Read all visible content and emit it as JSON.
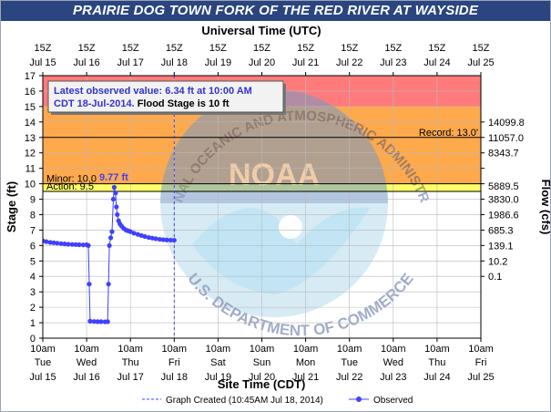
{
  "title": "PRAIRIE DOG TOWN FORK OF THE RED RIVER AT WAYSIDE",
  "colors": {
    "title_bg": "#2a4580",
    "major": "#ff7b7b",
    "moderate": "#ffa94d",
    "minor": "#ffc970",
    "action": "#ffff66",
    "observed": "#4040ff",
    "info_text": "#3333cc"
  },
  "info_box": {
    "line1": "Latest observed value: 6.34 ft at 10:00 AM",
    "line2_date": "CDT 18-Jul-2014.",
    "line2_flood": " Flood Stage is 10 ft"
  },
  "chart_data": {
    "type": "line",
    "top_axis_title": "Universal Time (UTC)",
    "top_ticks": [
      {
        "l1": "15Z",
        "l2": "Jul 15"
      },
      {
        "l1": "15Z",
        "l2": "Jul 16"
      },
      {
        "l1": "15Z",
        "l2": "Jul 17"
      },
      {
        "l1": "15Z",
        "l2": "Jul 18"
      },
      {
        "l1": "15Z",
        "l2": "Jul 19"
      },
      {
        "l1": "15Z",
        "l2": "Jul 20"
      },
      {
        "l1": "15Z",
        "l2": "Jul 21"
      },
      {
        "l1": "15Z",
        "l2": "Jul 22"
      },
      {
        "l1": "15Z",
        "l2": "Jul 23"
      },
      {
        "l1": "15Z",
        "l2": "Jul 24"
      },
      {
        "l1": "15Z",
        "l2": "Jul 25"
      }
    ],
    "xlabel": "Site Time (CDT)",
    "x_ticks": [
      {
        "time": "10am",
        "day": "Tue",
        "date": "Jul 15"
      },
      {
        "time": "10am",
        "day": "Wed",
        "date": "Jul 16"
      },
      {
        "time": "10am",
        "day": "Thu",
        "date": "Jul 17"
      },
      {
        "time": "10am",
        "day": "Fri",
        "date": "Jul 18"
      },
      {
        "time": "10am",
        "day": "Sat",
        "date": "Jul 19"
      },
      {
        "time": "10am",
        "day": "Sun",
        "date": "Jul 20"
      },
      {
        "time": "10am",
        "day": "Mon",
        "date": "Jul 21"
      },
      {
        "time": "10am",
        "day": "Tue",
        "date": "Jul 22"
      },
      {
        "time": "10am",
        "day": "Wed",
        "date": "Jul 23"
      },
      {
        "time": "10am",
        "day": "Thu",
        "date": "Jul 24"
      },
      {
        "time": "10am",
        "day": "Fri",
        "date": "Jul 25"
      }
    ],
    "xlim_days": [
      0,
      10
    ],
    "ylabel": "Stage (ft)",
    "ylim": [
      0,
      17
    ],
    "y_ticks": [
      0,
      1,
      2,
      3,
      4,
      5,
      6,
      7,
      8,
      9,
      10,
      11,
      12,
      13,
      14,
      15,
      16,
      17
    ],
    "right_ylabel": "Flow (cfs)",
    "flow_ticks": [
      {
        "stage": 14,
        "label": "14099.8"
      },
      {
        "stage": 13,
        "label": "11057.0"
      },
      {
        "stage": 12,
        "label": "8343.7"
      },
      {
        "stage": 11,
        "label": ""
      },
      {
        "stage": 10,
        "label": ""
      },
      {
        "stage": 9,
        "label": "3830.0"
      },
      {
        "stage": 8,
        "label": "1986.6"
      },
      {
        "stage": 7,
        "label": "685.3"
      },
      {
        "stage": 6,
        "label": "139.1"
      },
      {
        "stage": 5,
        "label": "10.2"
      },
      {
        "stage": 4,
        "label": "0.1"
      }
    ],
    "flood_categories": [
      {
        "name": "major",
        "from": 15,
        "to": 17
      },
      {
        "name": "moderate",
        "from": 10,
        "to": 15
      },
      {
        "name": "action",
        "from": 9.5,
        "to": 10
      }
    ],
    "thresholds": [
      {
        "stage": 13,
        "label": "Record: 13.0'"
      },
      {
        "stage": 10,
        "label": "Minor: 10.0"
      },
      {
        "stage": 9.5,
        "label": "Action: 9.5"
      }
    ],
    "flow_at_thresholds": [
      {
        "stage": 9.85,
        "label": "5889.5"
      }
    ],
    "crest_label": "9.77 ft",
    "graph_created_x_days": 3,
    "series": [
      {
        "name": "Observed",
        "points": [
          [
            0.0,
            6.3
          ],
          [
            0.08,
            6.25
          ],
          [
            0.17,
            6.2
          ],
          [
            0.25,
            6.18
          ],
          [
            0.33,
            6.15
          ],
          [
            0.42,
            6.12
          ],
          [
            0.5,
            6.1
          ],
          [
            0.58,
            6.08
          ],
          [
            0.67,
            6.07
          ],
          [
            0.75,
            6.06
          ],
          [
            0.83,
            6.05
          ],
          [
            0.92,
            6.04
          ],
          [
            1.0,
            6.05
          ],
          [
            1.04,
            6.0
          ],
          [
            1.06,
            3.5
          ],
          [
            1.08,
            1.1
          ],
          [
            1.17,
            1.08
          ],
          [
            1.25,
            1.07
          ],
          [
            1.33,
            1.07
          ],
          [
            1.42,
            1.06
          ],
          [
            1.48,
            1.07
          ],
          [
            1.5,
            3.5
          ],
          [
            1.52,
            6.0
          ],
          [
            1.55,
            6.5
          ],
          [
            1.58,
            6.9
          ],
          [
            1.61,
            9.0
          ],
          [
            1.63,
            9.77
          ],
          [
            1.66,
            9.4
          ],
          [
            1.68,
            8.5
          ],
          [
            1.7,
            8.0
          ],
          [
            1.73,
            7.6
          ],
          [
            1.76,
            7.4
          ],
          [
            1.8,
            7.25
          ],
          [
            1.85,
            7.1
          ],
          [
            1.9,
            7.0
          ],
          [
            1.95,
            6.95
          ],
          [
            2.0,
            6.9
          ],
          [
            2.08,
            6.8
          ],
          [
            2.17,
            6.72
          ],
          [
            2.25,
            6.65
          ],
          [
            2.33,
            6.58
          ],
          [
            2.42,
            6.52
          ],
          [
            2.5,
            6.48
          ],
          [
            2.58,
            6.44
          ],
          [
            2.67,
            6.4
          ],
          [
            2.75,
            6.38
          ],
          [
            2.83,
            6.36
          ],
          [
            2.92,
            6.35
          ],
          [
            3.0,
            6.34
          ]
        ]
      }
    ]
  },
  "legend": {
    "graph_created": "Graph Created (10:45AM Jul 18, 2014)",
    "observed": "Observed"
  },
  "watermark": {
    "arc_top": "NATIONAL OCEANIC AND ATMOSPHERIC ADMINISTRATION",
    "arc_bottom": "U.S. DEPARTMENT OF COMMERCE",
    "center": "NOAA"
  }
}
